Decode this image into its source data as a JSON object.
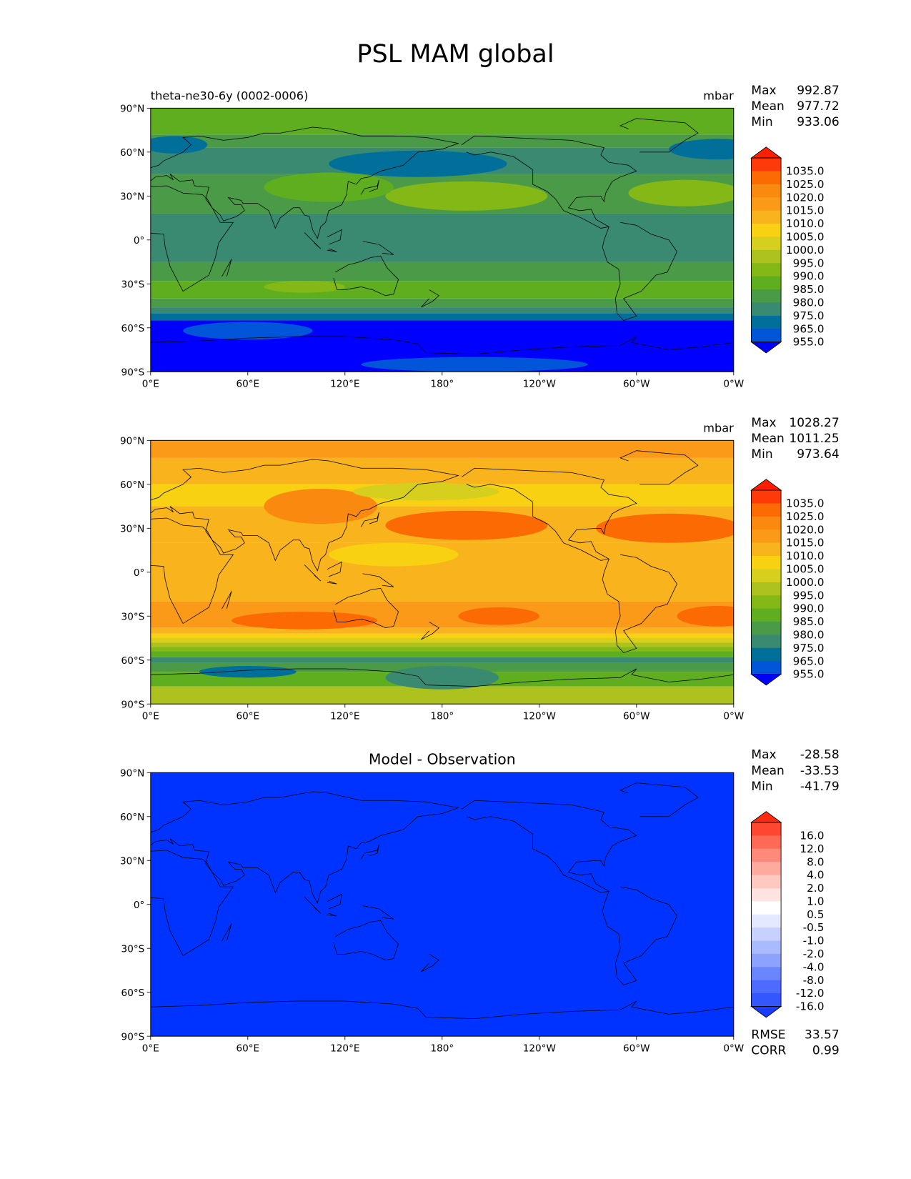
{
  "figure": {
    "title": "PSL MAM global"
  },
  "colors": {
    "main_levels": [
      "#0000ff",
      "#0055d9",
      "#00709a",
      "#3a8a72",
      "#4a9a48",
      "#5fae1f",
      "#84b817",
      "#aec21f",
      "#d6cf1e",
      "#f7d112",
      "#f9b31d",
      "#fa9a18",
      "#f98a0f",
      "#fb6a03",
      "#ff3a0a",
      "#ff1e00"
    ],
    "diff_levels": [
      "#1a3cff",
      "#3356ff",
      "#4d6cff",
      "#6a86ff",
      "#8da2ff",
      "#aabaff",
      "#c7d1ff",
      "#e4e9ff",
      "#ffffff",
      "#ffe3e0",
      "#ffc8c0",
      "#ffaa9f",
      "#ff8a7c",
      "#ff6a56",
      "#ff4630",
      "#ff2a10"
    ],
    "diff_field": "#0033ff"
  },
  "chart_data": [
    {
      "type": "heatmap",
      "id": "test",
      "title_left": "theta-ne30-6y (0002-0006)",
      "title_center": "",
      "units": "mbar",
      "stats": {
        "max_label": "Max",
        "max": "992.87",
        "mean_label": "Mean",
        "mean": "977.72",
        "min_label": "Min",
        "min": "933.06"
      },
      "x_ticks": [
        "0°E",
        "60°E",
        "120°E",
        "180°",
        "120°W",
        "60°W",
        "0°W"
      ],
      "y_ticks": [
        "90°N",
        "60°N",
        "30°N",
        "0°",
        "30°S",
        "60°S",
        "90°S"
      ],
      "x_range": [
        0,
        360
      ],
      "y_range": [
        -90,
        90
      ],
      "colorbar_levels": [
        "1035.0",
        "1025.0",
        "1020.0",
        "1015.0",
        "1010.0",
        "1005.0",
        "1000.0",
        "995.0",
        "990.0",
        "985.0",
        "980.0",
        "975.0",
        "965.0",
        "955.0"
      ],
      "zonal_bands": [
        {
          "lat_top": 90,
          "lat_bottom": 72,
          "level": 5
        },
        {
          "lat_top": 72,
          "lat_bottom": 63,
          "level": 4
        },
        {
          "lat_top": 63,
          "lat_bottom": 45,
          "level": 3
        },
        {
          "lat_top": 45,
          "lat_bottom": 18,
          "level": 4
        },
        {
          "lat_top": 18,
          "lat_bottom": -15,
          "level": 3
        },
        {
          "lat_top": -15,
          "lat_bottom": -28,
          "level": 4
        },
        {
          "lat_top": -28,
          "lat_bottom": -40,
          "level": 5
        },
        {
          "lat_top": -40,
          "lat_bottom": -46,
          "level": 4
        },
        {
          "lat_top": -46,
          "lat_bottom": -50,
          "level": 3
        },
        {
          "lat_top": -50,
          "lat_bottom": -55,
          "level": 2
        },
        {
          "lat_top": -55,
          "lat_bottom": -90,
          "level": 0
        }
      ],
      "blobs": [
        {
          "lon": 195,
          "lat": 30,
          "rlon": 50,
          "rlat": 10,
          "level": 6
        },
        {
          "lon": 330,
          "lat": 32,
          "rlon": 35,
          "rlat": 9,
          "level": 6
        },
        {
          "lon": 110,
          "lat": 36,
          "rlon": 40,
          "rlat": 10,
          "level": 5
        },
        {
          "lon": 165,
          "lat": 52,
          "rlon": 55,
          "rlat": 9,
          "level": 2
        },
        {
          "lon": 350,
          "lat": 62,
          "rlon": 30,
          "rlat": 7,
          "level": 2
        },
        {
          "lon": 15,
          "lat": 65,
          "rlon": 20,
          "rlat": 6,
          "level": 2
        },
        {
          "lon": 95,
          "lat": -32,
          "rlon": 25,
          "rlat": 4,
          "level": 6
        },
        {
          "lon": 60,
          "lat": -62,
          "rlon": 40,
          "rlat": 6,
          "level": 1
        },
        {
          "lon": 200,
          "lat": -85,
          "rlon": 70,
          "rlat": 5,
          "level": 1
        }
      ]
    },
    {
      "type": "heatmap",
      "id": "reference",
      "title_left": "",
      "title_center": "",
      "units": "mbar",
      "stats": {
        "max_label": "Max",
        "max": "1028.27",
        "mean_label": "Mean",
        "mean": "1011.25",
        "min_label": "Min",
        "min": "973.64"
      },
      "x_ticks": [
        "0°E",
        "60°E",
        "120°E",
        "180°",
        "120°W",
        "60°W",
        "0°W"
      ],
      "y_ticks": [
        "90°N",
        "60°N",
        "30°N",
        "0°",
        "30°S",
        "60°S",
        "90°S"
      ],
      "x_range": [
        0,
        360
      ],
      "y_range": [
        -90,
        90
      ],
      "colorbar_levels": [
        "1035.0",
        "1025.0",
        "1020.0",
        "1015.0",
        "1010.0",
        "1005.0",
        "1000.0",
        "995.0",
        "990.0",
        "985.0",
        "980.0",
        "975.0",
        "965.0",
        "955.0"
      ],
      "zonal_bands": [
        {
          "lat_top": 90,
          "lat_bottom": 78,
          "level": 11
        },
        {
          "lat_top": 78,
          "lat_bottom": 60,
          "level": 10
        },
        {
          "lat_top": 60,
          "lat_bottom": 45,
          "level": 9
        },
        {
          "lat_top": 45,
          "lat_bottom": 20,
          "level": 10
        },
        {
          "lat_top": 20,
          "lat_bottom": -20,
          "level": 10
        },
        {
          "lat_top": -20,
          "lat_bottom": -38,
          "level": 11
        },
        {
          "lat_top": -38,
          "lat_bottom": -42,
          "level": 10
        },
        {
          "lat_top": -42,
          "lat_bottom": -45,
          "level": 9
        },
        {
          "lat_top": -45,
          "lat_bottom": -48,
          "level": 8
        },
        {
          "lat_top": -48,
          "lat_bottom": -51,
          "level": 7
        },
        {
          "lat_top": -51,
          "lat_bottom": -54,
          "level": 6
        },
        {
          "lat_top": -54,
          "lat_bottom": -58,
          "level": 5
        },
        {
          "lat_top": -58,
          "lat_bottom": -62,
          "level": 3
        },
        {
          "lat_top": -62,
          "lat_bottom": -68,
          "level": 4
        },
        {
          "lat_top": -68,
          "lat_bottom": -78,
          "level": 5
        },
        {
          "lat_top": -78,
          "lat_bottom": -90,
          "level": 7
        }
      ],
      "blobs": [
        {
          "lon": 195,
          "lat": 32,
          "rlon": 50,
          "rlat": 10,
          "level": 13
        },
        {
          "lon": 320,
          "lat": 30,
          "rlon": 45,
          "rlat": 10,
          "level": 13
        },
        {
          "lon": 105,
          "lat": 45,
          "rlon": 35,
          "rlat": 12,
          "level": 12
        },
        {
          "lon": 95,
          "lat": -33,
          "rlon": 45,
          "rlat": 6,
          "level": 13
        },
        {
          "lon": 215,
          "lat": -30,
          "rlon": 25,
          "rlat": 6,
          "level": 13
        },
        {
          "lon": 350,
          "lat": -30,
          "rlon": 25,
          "rlat": 7,
          "level": 13
        },
        {
          "lon": 170,
          "lat": 55,
          "rlon": 45,
          "rlat": 6,
          "level": 8
        },
        {
          "lon": 180,
          "lat": -72,
          "rlon": 35,
          "rlat": 8,
          "level": 3
        },
        {
          "lon": 60,
          "lat": -68,
          "rlon": 30,
          "rlat": 4,
          "level": 2
        },
        {
          "lon": 150,
          "lat": 12,
          "rlon": 40,
          "rlat": 8,
          "level": 9
        }
      ]
    },
    {
      "type": "heatmap",
      "id": "difference",
      "title_left": "",
      "title_center": "Model - Observation",
      "units": "",
      "stats": {
        "max_label": "Max",
        "max": "-28.58",
        "mean_label": "Mean",
        "mean": "-33.53",
        "min_label": "Min",
        "min": "-41.79"
      },
      "x_ticks": [
        "0°E",
        "60°E",
        "120°E",
        "180°",
        "120°W",
        "60°W",
        "0°W"
      ],
      "y_ticks": [
        "90°N",
        "60°N",
        "30°N",
        "0°",
        "30°S",
        "60°S",
        "90°S"
      ],
      "x_range": [
        0,
        360
      ],
      "y_range": [
        -90,
        90
      ],
      "colorbar_levels": [
        "16.0",
        "12.0",
        "8.0",
        "4.0",
        "2.0",
        "1.0",
        "0.5",
        "-0.5",
        "-1.0",
        "-2.0",
        "-4.0",
        "-8.0",
        "-12.0",
        "-16.0"
      ],
      "zonal_bands": [],
      "blobs": [],
      "rmse_label": "RMSE",
      "rmse": "33.57",
      "corr_label": "CORR",
      "corr": "0.99"
    }
  ]
}
